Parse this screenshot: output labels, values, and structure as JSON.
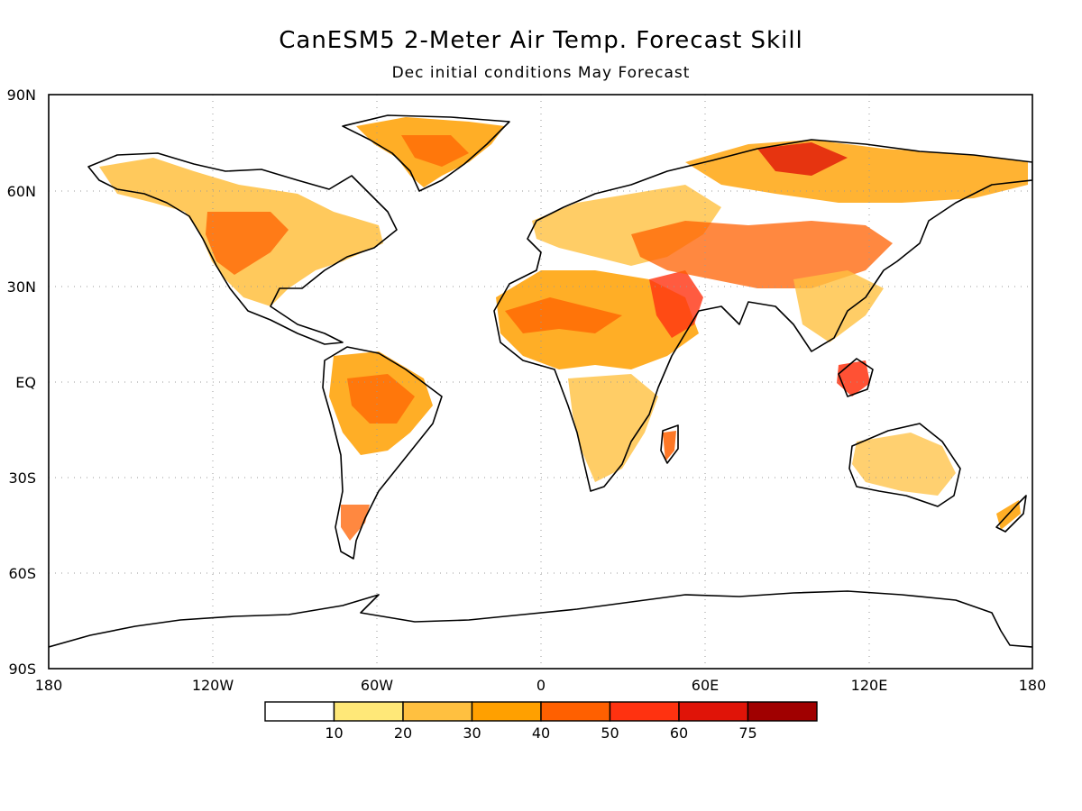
{
  "title": "CanESM5 2-Meter Air Temp. Forecast Skill",
  "subtitle": "Dec initial conditions   May Forecast",
  "lat_ticks": [
    "90N",
    "60N",
    "30N",
    "EQ",
    "30S",
    "60S",
    "90S"
  ],
  "lon_ticks": [
    "180",
    "120W",
    "60W",
    "0",
    "60E",
    "120E",
    "180"
  ],
  "colorbar": {
    "colors": [
      "#ffffff",
      "#ffe878",
      "#ffc040",
      "#ffa000",
      "#ff6000",
      "#ff3210",
      "#e01408",
      "#a00000"
    ],
    "labels": [
      "10",
      "20",
      "30",
      "40",
      "50",
      "60",
      "75"
    ]
  },
  "map": {
    "projection": "equirectangular",
    "lon_range": [
      -180,
      180
    ],
    "lat_range": [
      -90,
      90
    ]
  }
}
